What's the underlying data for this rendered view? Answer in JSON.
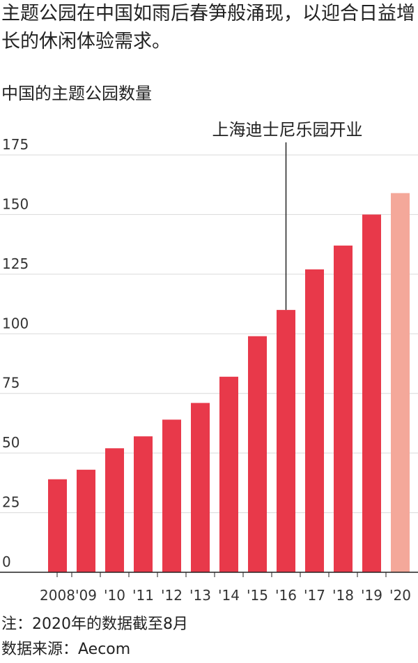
{
  "headline": "主题公园在中国如雨后春笋般涌现，以迎合日益增长的休闲体验需求。",
  "chart_data": {
    "type": "bar",
    "title": "中国的主题公园数量",
    "xlabel": "",
    "ylabel": "",
    "categories": [
      "2008",
      "'09",
      "'10",
      "'11",
      "'12",
      "'13",
      "'14",
      "'15",
      "'16",
      "'17",
      "'18",
      "'19",
      "'20"
    ],
    "values": [
      39,
      43,
      52,
      57,
      64,
      71,
      82,
      99,
      110,
      127,
      137,
      150,
      159
    ],
    "ylim": [
      0,
      175
    ],
    "yticks": [
      0,
      25,
      50,
      75,
      100,
      125,
      150,
      175
    ],
    "grid": true,
    "bar_color": "#e8394a",
    "highlight_color": "#f4a89a",
    "highlight_index": 12,
    "annotations": [
      {
        "text": "上海迪士尼乐园开业",
        "category": "'16"
      }
    ]
  },
  "footer": {
    "note": "注：2020年的数据截至8月",
    "source": "数据来源：Aecom"
  }
}
